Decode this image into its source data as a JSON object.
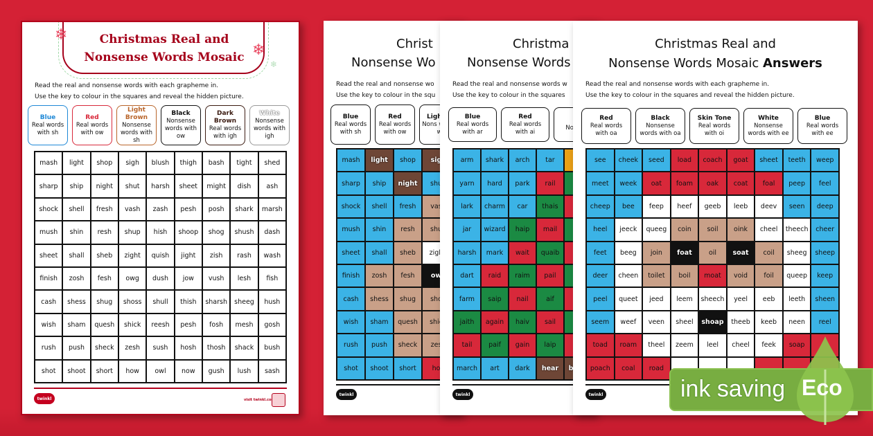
{
  "colors": {
    "background": "#d42135",
    "blue": "#3bb3e6",
    "red": "#d8283a",
    "green": "#1b8a43",
    "light_brown": "#c9a088",
    "dark_brown": "#6e4636",
    "black": "#111111",
    "white": "#ffffff",
    "orange": "#eaa116",
    "eco_green": "#78ad41"
  },
  "page1": {
    "title_line1": "Christmas Real and",
    "title_line2": "Nonsense Words Mosaic",
    "instruction_1": "Read the real and nonsense words with each grapheme in.",
    "instruction_2": "Use the key to colour in the squares and reveal the hidden picture.",
    "key": [
      {
        "color": "Blue",
        "desc": "Real words with sh",
        "border": "#1e88d6",
        "text_color": "#1e88d6"
      },
      {
        "color": "Red",
        "desc": "Real words with ow",
        "border": "#d8283a",
        "text_color": "#d8283a"
      },
      {
        "color": "Light Brown",
        "desc": "Nonsense words with sh",
        "border": "#b9652a",
        "text_color": "#b9652a"
      },
      {
        "color": "Black",
        "desc": "Nonsense words with ow",
        "border": "#111111",
        "text_color": "#111111"
      },
      {
        "color": "Dark Brown",
        "desc": "Real words with igh",
        "border": "#3a1a10",
        "text_color": "#3a1a10"
      },
      {
        "color": "White",
        "desc": "Nonsense words with igh",
        "border": "#999999",
        "text_color": "#ffffff"
      }
    ],
    "grid": [
      [
        "mash",
        "light",
        "shop",
        "sigh",
        "blush",
        "thigh",
        "bash",
        "tight",
        "shed"
      ],
      [
        "sharp",
        "ship",
        "night",
        "shut",
        "harsh",
        "sheet",
        "might",
        "dish",
        "ash"
      ],
      [
        "shock",
        "shell",
        "fresh",
        "vash",
        "zash",
        "pesh",
        "posh",
        "shark",
        "marsh"
      ],
      [
        "mush",
        "shin",
        "resh",
        "shup",
        "hish",
        "shoop",
        "shog",
        "shush",
        "dash"
      ],
      [
        "sheet",
        "shall",
        "sheb",
        "zight",
        "quish",
        "jight",
        "zish",
        "rash",
        "wash"
      ],
      [
        "finish",
        "zosh",
        "fesh",
        "owg",
        "dush",
        "jow",
        "vush",
        "lesh",
        "fish"
      ],
      [
        "cash",
        "shess",
        "shug",
        "shoss",
        "shull",
        "thish",
        "sharsh",
        "sheeg",
        "hush"
      ],
      [
        "wish",
        "sham",
        "quesh",
        "shick",
        "reesh",
        "pesh",
        "fosh",
        "mesh",
        "gosh"
      ],
      [
        "rush",
        "push",
        "sheck",
        "zesh",
        "sush",
        "hosh",
        "thosh",
        "shack",
        "bush"
      ],
      [
        "shot",
        "shoot",
        "short",
        "how",
        "owl",
        "now",
        "gush",
        "lush",
        "sash"
      ]
    ],
    "footer_logo": "twinkl",
    "footer_site": "visit twinkl.com"
  },
  "page2": {
    "title_line1": "Christ",
    "title_line2": "Nonsense Wo",
    "instruction_1": "Read the real and nonsense wo",
    "instruction_2": "Use the key to colour in the squ",
    "key": [
      {
        "color": "Blue",
        "desc": "Real words with sh"
      },
      {
        "color": "Red",
        "desc": "Real words with ow"
      },
      {
        "color": "Light B",
        "desc": "Nons words w"
      }
    ],
    "grid": [
      [
        {
          "w": "mash",
          "c": "blue"
        },
        {
          "w": "light",
          "c": "dark_brown"
        },
        {
          "w": "shop",
          "c": "blue"
        },
        {
          "w": "sig",
          "c": "dark_brown"
        }
      ],
      [
        {
          "w": "sharp",
          "c": "blue"
        },
        {
          "w": "ship",
          "c": "blue"
        },
        {
          "w": "night",
          "c": "dark_brown"
        },
        {
          "w": "shu",
          "c": "blue"
        }
      ],
      [
        {
          "w": "shock",
          "c": "blue"
        },
        {
          "w": "shell",
          "c": "blue"
        },
        {
          "w": "fresh",
          "c": "blue"
        },
        {
          "w": "vas",
          "c": "light_brown"
        }
      ],
      [
        {
          "w": "mush",
          "c": "blue"
        },
        {
          "w": "shin",
          "c": "blue"
        },
        {
          "w": "resh",
          "c": "light_brown"
        },
        {
          "w": "shu",
          "c": "light_brown"
        }
      ],
      [
        {
          "w": "sheet",
          "c": "blue"
        },
        {
          "w": "shall",
          "c": "blue"
        },
        {
          "w": "sheb",
          "c": "light_brown"
        },
        {
          "w": "zigh",
          "c": "white"
        }
      ],
      [
        {
          "w": "finish",
          "c": "blue"
        },
        {
          "w": "zosh",
          "c": "light_brown"
        },
        {
          "w": "fesh",
          "c": "light_brown"
        },
        {
          "w": "ow",
          "c": "black"
        }
      ],
      [
        {
          "w": "cash",
          "c": "blue"
        },
        {
          "w": "shess",
          "c": "light_brown"
        },
        {
          "w": "shug",
          "c": "light_brown"
        },
        {
          "w": "sho",
          "c": "light_brown"
        }
      ],
      [
        {
          "w": "wish",
          "c": "blue"
        },
        {
          "w": "sham",
          "c": "blue"
        },
        {
          "w": "quesh",
          "c": "light_brown"
        },
        {
          "w": "shic",
          "c": "light_brown"
        }
      ],
      [
        {
          "w": "rush",
          "c": "blue"
        },
        {
          "w": "push",
          "c": "blue"
        },
        {
          "w": "sheck",
          "c": "light_brown"
        },
        {
          "w": "zes",
          "c": "light_brown"
        }
      ],
      [
        {
          "w": "shot",
          "c": "blue"
        },
        {
          "w": "shoot",
          "c": "blue"
        },
        {
          "w": "short",
          "c": "blue"
        },
        {
          "w": "ho",
          "c": "red"
        }
      ]
    ],
    "footer_logo": "twinkl"
  },
  "page3": {
    "title_line1": "Christma",
    "title_line2": "Nonsense Words",
    "instruction_1": "Read the real and nonsense words w",
    "instruction_2": "Use the key to colour in the squares",
    "key": [
      {
        "color": "Blue",
        "desc": "Real words with ar"
      },
      {
        "color": "Red",
        "desc": "Real words with ai"
      },
      {
        "color": "G",
        "desc": "No word"
      }
    ],
    "grid": [
      [
        {
          "w": "arm",
          "c": "blue"
        },
        {
          "w": "shark",
          "c": "blue"
        },
        {
          "w": "arch",
          "c": "blue"
        },
        {
          "w": "tar",
          "c": "blue"
        },
        {
          "w": "",
          "c": "orange"
        }
      ],
      [
        {
          "w": "yarn",
          "c": "blue"
        },
        {
          "w": "hard",
          "c": "blue"
        },
        {
          "w": "park",
          "c": "blue"
        },
        {
          "w": "rail",
          "c": "red"
        },
        {
          "w": "",
          "c": "green"
        }
      ],
      [
        {
          "w": "lark",
          "c": "blue"
        },
        {
          "w": "charm",
          "c": "blue"
        },
        {
          "w": "car",
          "c": "blue"
        },
        {
          "w": "thais",
          "c": "green"
        },
        {
          "w": "",
          "c": "red"
        }
      ],
      [
        {
          "w": "jar",
          "c": "blue"
        },
        {
          "w": "wizard",
          "c": "blue"
        },
        {
          "w": "haip",
          "c": "green"
        },
        {
          "w": "mail",
          "c": "red"
        },
        {
          "w": "",
          "c": "green"
        }
      ],
      [
        {
          "w": "harsh",
          "c": "blue"
        },
        {
          "w": "mark",
          "c": "blue"
        },
        {
          "w": "wait",
          "c": "red"
        },
        {
          "w": "quaib",
          "c": "green"
        },
        {
          "w": "",
          "c": "red"
        }
      ],
      [
        {
          "w": "dart",
          "c": "blue"
        },
        {
          "w": "raid",
          "c": "red"
        },
        {
          "w": "raim",
          "c": "green"
        },
        {
          "w": "pail",
          "c": "red"
        },
        {
          "w": "",
          "c": "green"
        }
      ],
      [
        {
          "w": "farm",
          "c": "blue"
        },
        {
          "w": "saip",
          "c": "green"
        },
        {
          "w": "nail",
          "c": "red"
        },
        {
          "w": "aif",
          "c": "green"
        },
        {
          "w": "",
          "c": "red"
        }
      ],
      [
        {
          "w": "jaith",
          "c": "green"
        },
        {
          "w": "again",
          "c": "red"
        },
        {
          "w": "haiv",
          "c": "green"
        },
        {
          "w": "sail",
          "c": "red"
        },
        {
          "w": "",
          "c": "green"
        }
      ],
      [
        {
          "w": "tail",
          "c": "red"
        },
        {
          "w": "paif",
          "c": "green"
        },
        {
          "w": "gain",
          "c": "red"
        },
        {
          "w": "laip",
          "c": "green"
        },
        {
          "w": "",
          "c": "red"
        }
      ],
      [
        {
          "w": "march",
          "c": "blue"
        },
        {
          "w": "art",
          "c": "blue"
        },
        {
          "w": "dark",
          "c": "blue"
        },
        {
          "w": "hear",
          "c": "dark_brown"
        },
        {
          "w": "b",
          "c": "dark_brown"
        }
      ]
    ],
    "footer_logo": "twinkl"
  },
  "page4": {
    "title_line1": "Christmas Real and",
    "title_line2": "Nonsense Words Mosaic",
    "title_bold": "Answers",
    "instruction_1": "Read the real and nonsense words with each grapheme in.",
    "instruction_2": "Use the key to colour in the squares and reveal the hidden picture.",
    "key": [
      {
        "color": "Red",
        "desc": "Real words with oa"
      },
      {
        "color": "Black",
        "desc": "Nonsense words with oa"
      },
      {
        "color": "Skin Tone",
        "desc": "Real words with oi"
      },
      {
        "color": "White",
        "desc": "Nonsense words with ee"
      },
      {
        "color": "Blue",
        "desc": "Real words with ee"
      }
    ],
    "grid": [
      [
        {
          "w": "see",
          "c": "blue"
        },
        {
          "w": "cheek",
          "c": "blue"
        },
        {
          "w": "seed",
          "c": "blue"
        },
        {
          "w": "load",
          "c": "red"
        },
        {
          "w": "coach",
          "c": "red"
        },
        {
          "w": "goat",
          "c": "red"
        },
        {
          "w": "sheet",
          "c": "blue"
        },
        {
          "w": "teeth",
          "c": "blue"
        },
        {
          "w": "weep",
          "c": "blue"
        }
      ],
      [
        {
          "w": "meet",
          "c": "blue"
        },
        {
          "w": "week",
          "c": "blue"
        },
        {
          "w": "oat",
          "c": "red"
        },
        {
          "w": "foam",
          "c": "red"
        },
        {
          "w": "oak",
          "c": "red"
        },
        {
          "w": "coat",
          "c": "red"
        },
        {
          "w": "foal",
          "c": "red"
        },
        {
          "w": "peep",
          "c": "blue"
        },
        {
          "w": "feel",
          "c": "blue"
        }
      ],
      [
        {
          "w": "cheep",
          "c": "blue"
        },
        {
          "w": "bee",
          "c": "blue"
        },
        {
          "w": "feep",
          "c": "white"
        },
        {
          "w": "heef",
          "c": "white"
        },
        {
          "w": "geeb",
          "c": "white"
        },
        {
          "w": "leeb",
          "c": "white"
        },
        {
          "w": "deev",
          "c": "white"
        },
        {
          "w": "seen",
          "c": "blue"
        },
        {
          "w": "deep",
          "c": "blue"
        }
      ],
      [
        {
          "w": "heel",
          "c": "blue"
        },
        {
          "w": "jeeck",
          "c": "white"
        },
        {
          "w": "queeg",
          "c": "white"
        },
        {
          "w": "coin",
          "c": "light_brown"
        },
        {
          "w": "soil",
          "c": "light_brown"
        },
        {
          "w": "oink",
          "c": "light_brown"
        },
        {
          "w": "cheel",
          "c": "white"
        },
        {
          "w": "theech",
          "c": "white"
        },
        {
          "w": "cheer",
          "c": "blue"
        }
      ],
      [
        {
          "w": "feet",
          "c": "blue"
        },
        {
          "w": "beeg",
          "c": "white"
        },
        {
          "w": "join",
          "c": "light_brown"
        },
        {
          "w": "foat",
          "c": "black"
        },
        {
          "w": "oil",
          "c": "light_brown"
        },
        {
          "w": "soat",
          "c": "black"
        },
        {
          "w": "coil",
          "c": "light_brown"
        },
        {
          "w": "sheeg",
          "c": "white"
        },
        {
          "w": "sheep",
          "c": "blue"
        }
      ],
      [
        {
          "w": "deer",
          "c": "blue"
        },
        {
          "w": "cheen",
          "c": "white"
        },
        {
          "w": "toilet",
          "c": "light_brown"
        },
        {
          "w": "boil",
          "c": "light_brown"
        },
        {
          "w": "moat",
          "c": "red"
        },
        {
          "w": "void",
          "c": "light_brown"
        },
        {
          "w": "foil",
          "c": "light_brown"
        },
        {
          "w": "queep",
          "c": "white"
        },
        {
          "w": "keep",
          "c": "blue"
        }
      ],
      [
        {
          "w": "peel",
          "c": "blue"
        },
        {
          "w": "queet",
          "c": "white"
        },
        {
          "w": "jeed",
          "c": "white"
        },
        {
          "w": "leem",
          "c": "white"
        },
        {
          "w": "sheech",
          "c": "white"
        },
        {
          "w": "yeel",
          "c": "white"
        },
        {
          "w": "eeb",
          "c": "white"
        },
        {
          "w": "leeth",
          "c": "white"
        },
        {
          "w": "sheen",
          "c": "blue"
        }
      ],
      [
        {
          "w": "seem",
          "c": "blue"
        },
        {
          "w": "weef",
          "c": "white"
        },
        {
          "w": "veen",
          "c": "white"
        },
        {
          "w": "sheel",
          "c": "white"
        },
        {
          "w": "shoap",
          "c": "black"
        },
        {
          "w": "theeb",
          "c": "white"
        },
        {
          "w": "keeb",
          "c": "white"
        },
        {
          "w": "neen",
          "c": "white"
        },
        {
          "w": "reel",
          "c": "blue"
        }
      ],
      [
        {
          "w": "toad",
          "c": "red"
        },
        {
          "w": "roam",
          "c": "red"
        },
        {
          "w": "theel",
          "c": "white"
        },
        {
          "w": "zeem",
          "c": "white"
        },
        {
          "w": "leel",
          "c": "white"
        },
        {
          "w": "cheel",
          "c": "white"
        },
        {
          "w": "feek",
          "c": "white"
        },
        {
          "w": "soap",
          "c": "red"
        },
        {
          "w": "",
          "c": "red"
        }
      ],
      [
        {
          "w": "poach",
          "c": "red"
        },
        {
          "w": "coal",
          "c": "red"
        },
        {
          "w": "road",
          "c": "red"
        },
        {
          "w": "",
          "c": "white"
        },
        {
          "w": "",
          "c": "white"
        },
        {
          "w": "",
          "c": "white"
        },
        {
          "w": "",
          "c": "red"
        },
        {
          "w": "",
          "c": "red"
        },
        {
          "w": "",
          "c": "red"
        }
      ]
    ],
    "footer_logo": "twinkl"
  },
  "eco_badge": {
    "text": "ink saving",
    "label": "Eco"
  }
}
